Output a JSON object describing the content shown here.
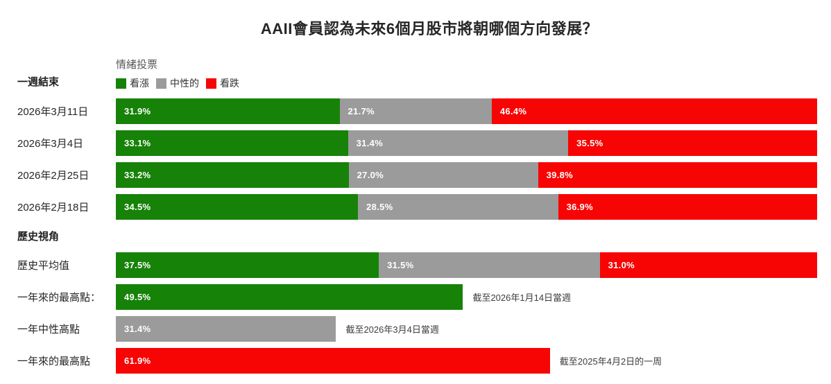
{
  "title": "AAII會員認為未來6個月股市將朝哪個方向發展？",
  "legend": {
    "title": "情緒投票",
    "items": [
      {
        "label": "看漲"
      },
      {
        "label": "中性的"
      },
      {
        "label": "看跌"
      }
    ]
  },
  "section_headers": {
    "week": "一週結束",
    "history": "歷史視角"
  },
  "chart_data": {
    "type": "bar",
    "orientation": "horizontal",
    "stacked": true,
    "xlim": [
      0,
      100
    ],
    "grid": false,
    "legend_position": "top",
    "series_labels": [
      "看漲",
      "中性的",
      "看跌"
    ],
    "colors": {
      "bullish": "#168208",
      "neutral": "#9b9b9b",
      "bearish": "#f70505"
    },
    "rows": [
      {
        "label": "2026年3月11日",
        "values": [
          31.9,
          21.7,
          46.4
        ],
        "value_labels": [
          "31.9%",
          "21.7%",
          "46.4%"
        ]
      },
      {
        "label": "2026年3月4日",
        "values": [
          33.1,
          31.4,
          35.5
        ],
        "value_labels": [
          "33.1%",
          "31.4%",
          "35.5%"
        ]
      },
      {
        "label": "2026年2月25日",
        "values": [
          33.2,
          27.0,
          39.8
        ],
        "value_labels": [
          "33.2%",
          "27.0%",
          "39.8%"
        ]
      },
      {
        "label": "2026年2月18日",
        "values": [
          34.5,
          28.5,
          36.9
        ],
        "value_labels": [
          "34.5%",
          "28.5%",
          "36.9%"
        ]
      },
      {
        "label": "歷史平均值",
        "values": [
          37.5,
          31.5,
          31.0
        ],
        "value_labels": [
          "37.5%",
          "31.5%",
          "31.0%"
        ]
      },
      {
        "label": "一年來的最高點：",
        "kind": "bullish",
        "values": [
          49.5
        ],
        "value_labels": [
          "49.5%"
        ],
        "note": "截至2026年1月14日當週"
      },
      {
        "label": "一年中性高點",
        "kind": "neutral",
        "values": [
          31.4
        ],
        "value_labels": [
          "31.4%"
        ],
        "note": "截至2026年3月4日當週"
      },
      {
        "label": "一年來的最高點",
        "kind": "bearish",
        "values": [
          61.9
        ],
        "value_labels": [
          "61.9%"
        ],
        "note": "截至2025年4月2日的一周"
      }
    ]
  }
}
